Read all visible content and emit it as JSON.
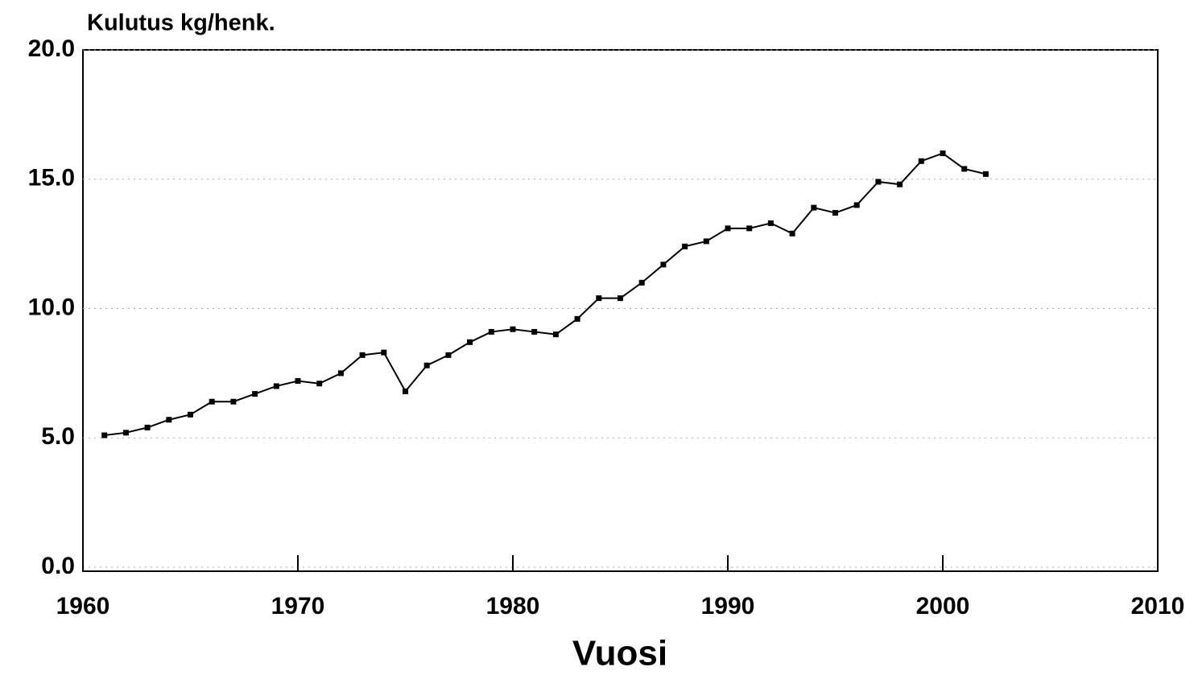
{
  "chart_data": {
    "type": "line",
    "y_label": "Kulutus kg/henk.",
    "x_label": "Vuosi",
    "x": [
      1961,
      1962,
      1963,
      1964,
      1965,
      1966,
      1967,
      1968,
      1969,
      1970,
      1971,
      1972,
      1973,
      1974,
      1975,
      1976,
      1977,
      1978,
      1979,
      1980,
      1981,
      1982,
      1983,
      1984,
      1985,
      1986,
      1987,
      1988,
      1989,
      1990,
      1991,
      1992,
      1993,
      1994,
      1995,
      1996,
      1997,
      1998,
      1999,
      2000,
      2001,
      2002
    ],
    "series": [
      {
        "color": "#000000",
        "values": [
          5.1,
          5.2,
          5.4,
          5.7,
          5.9,
          6.4,
          6.4,
          6.7,
          7.0,
          7.2,
          7.1,
          7.5,
          8.2,
          8.3,
          6.8,
          7.8,
          8.2,
          8.7,
          9.1,
          9.2,
          9.1,
          9.0,
          9.6,
          10.4,
          10.4,
          11.0,
          11.7,
          12.4,
          12.6,
          13.1,
          13.1,
          13.3,
          12.9,
          13.9,
          13.7,
          14.0,
          14.9,
          14.8,
          15.7,
          16.0,
          15.4,
          15.2
        ]
      }
    ],
    "xlim": [
      1960,
      2010
    ],
    "xticks": [
      1960,
      1970,
      1980,
      1990,
      2000,
      2010
    ],
    "ylim": [
      0,
      20
    ],
    "yticks": [
      {
        "value": 0,
        "label": "0.0"
      },
      {
        "value": 5,
        "label": "5.0"
      },
      {
        "value": 10,
        "label": "10.0"
      },
      {
        "value": 15,
        "label": "15.0"
      },
      {
        "value": 20,
        "label": "20.0"
      }
    ],
    "grid": true
  }
}
